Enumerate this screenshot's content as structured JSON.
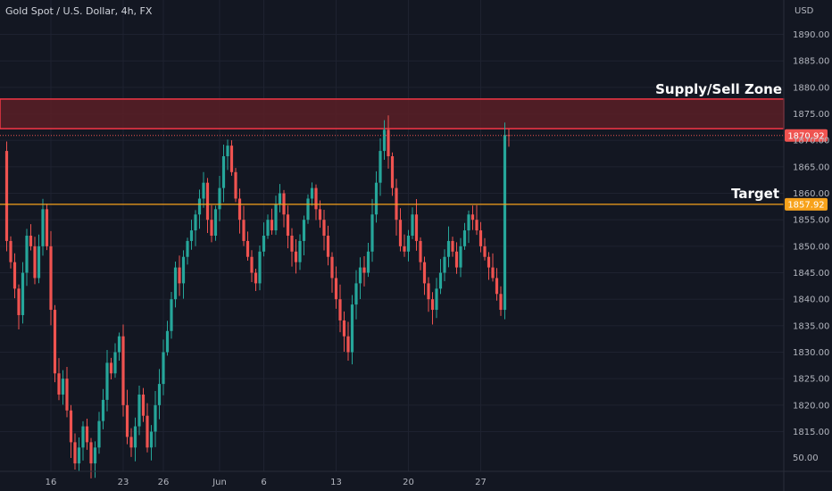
{
  "header": {
    "title": "Gold Spot / U.S. Dollar, 4h, FX"
  },
  "colors": {
    "background": "#131722",
    "grid": "#1e2230",
    "up": "#26a69a",
    "down": "#ef5350",
    "zone_fill": "#5a1e26",
    "zone_border": "#f23645",
    "target_line": "#f7a21b",
    "axis_border": "#2a2e39"
  },
  "chart_data": {
    "type": "candlestick",
    "title": "Gold Spot / U.S. Dollar, 4h, FX",
    "currency_label": "USD",
    "ylim": [
      1807.5,
      1896.5
    ],
    "y_ticks": [
      1890,
      1885,
      1880,
      1875,
      1870,
      1865,
      1860,
      1855,
      1850,
      1845,
      1840,
      1835,
      1830,
      1825,
      1820,
      1815
    ],
    "extra_axis_label": "50.00",
    "x_ticks": [
      {
        "label": "16",
        "bar": 12
      },
      {
        "label": "23",
        "bar": 30
      },
      {
        "label": "26",
        "bar": 40
      },
      {
        "label": "Jun",
        "bar": 54
      },
      {
        "label": "6",
        "bar": 65
      },
      {
        "label": "13",
        "bar": 83
      },
      {
        "label": "20",
        "bar": 101
      },
      {
        "label": "27",
        "bar": 119
      }
    ],
    "supply_zone": {
      "label": "Supply/Sell Zone",
      "low": 1872.2,
      "high": 1877.8
    },
    "target": {
      "label": "Target",
      "price": 1857.92,
      "badge": "1857.92"
    },
    "current_price": {
      "price": 1870.92,
      "badge": "1870.92"
    },
    "close_path": [
      1868,
      1851,
      1847,
      1842,
      1837,
      1845,
      1852,
      1850,
      1844,
      1850,
      1857,
      1850,
      1838,
      1826,
      1822,
      1825,
      1819,
      1813,
      1809,
      1812,
      1816,
      1813,
      1809,
      1812,
      1817,
      1821,
      1828,
      1826,
      1830,
      1833,
      1820,
      1814,
      1812,
      1816,
      1822,
      1818,
      1812,
      1815,
      1820,
      1824,
      1830,
      1834,
      1840,
      1846,
      1843,
      1848,
      1851,
      1853,
      1856,
      1859,
      1862,
      1855,
      1852,
      1857,
      1861,
      1867,
      1869,
      1864,
      1859,
      1855,
      1851,
      1848,
      1845,
      1843,
      1849,
      1852,
      1855,
      1853,
      1858,
      1860,
      1856,
      1852,
      1849,
      1847,
      1851,
      1855,
      1859,
      1861,
      1857,
      1855,
      1852,
      1848,
      1844,
      1840,
      1836,
      1833,
      1830,
      1839,
      1843,
      1846,
      1845,
      1849,
      1856,
      1862,
      1868,
      1872,
      1867,
      1861,
      1855,
      1850,
      1849,
      1852,
      1856,
      1851,
      1847,
      1843,
      1840,
      1838,
      1842,
      1845,
      1848,
      1851,
      1849,
      1846,
      1850,
      1853,
      1856,
      1855,
      1853,
      1850,
      1848,
      1846,
      1844,
      1841,
      1838,
      1871,
      1870.9
    ]
  }
}
